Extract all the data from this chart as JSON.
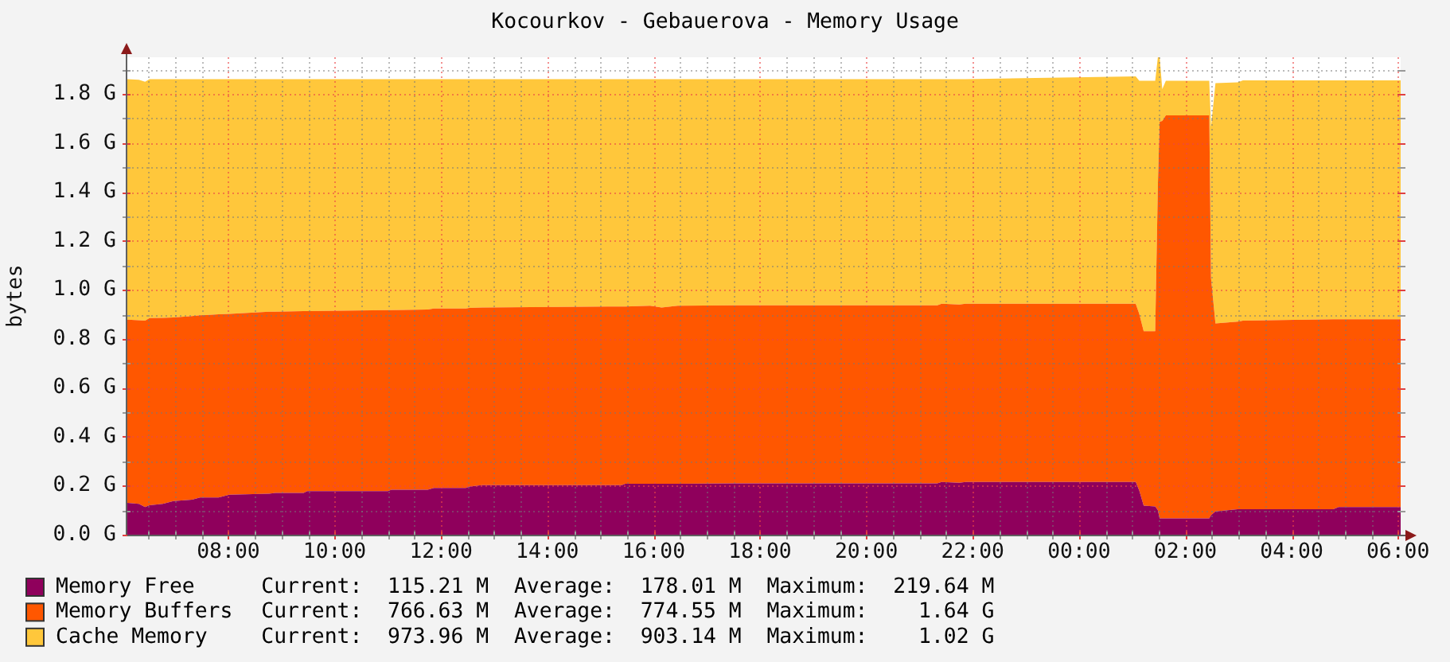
{
  "chart_data": {
    "type": "area",
    "title": "Kocourkov - Gebauerova - Memory Usage",
    "ylabel": "bytes",
    "stacked": true,
    "grid": true,
    "legend": "bottom",
    "x": [
      "--01-01T06:06",
      "--01-01T06:19",
      "--01-01T06:26",
      "--01-01T06:31",
      "--01-01T06:46",
      "--01-01T06:58",
      "--01-01T07:19",
      "--01-01T07:28",
      "--01-01T07:49",
      "--01-01T08:01",
      "--01-01T08:46",
      "--01-01T08:53",
      "--01-01T09:25",
      "--01-01T09:29",
      "--01-01T11:00",
      "--01-01T11:04",
      "--01-01T11:45",
      "--01-01T11:52",
      "--01-01T12:28",
      "--01-01T12:32",
      "--01-01T12:46",
      "--01-01T15:24",
      "--01-01T15:28",
      "--01-01T15:56",
      "--01-01T16:09",
      "--01-01T16:27",
      "--01-01T17:30",
      "--01-01T21:20",
      "--01-01T21:25",
      "--01-01T21:45",
      "--01-01T21:52",
      "--01-02T01:04",
      "--01-02T01:08",
      "--01-02T01:13",
      "--01-02T01:26",
      "--01-02T01:29",
      "--01-02T01:31",
      "--01-02T01:34",
      "--01-02T01:38",
      "--01-02T02:27",
      "--01-02T02:29",
      "--01-02T02:34",
      "--01-02T02:59",
      "--01-02T03:05",
      "--01-02T04:47",
      "--01-02T04:53",
      "--01-02T06:03"
    ],
    "series": [
      {
        "name": "Memory Free",
        "color": "#8f005c",
        "values": [
          0.13,
          0.126,
          0.113,
          0.12,
          0.126,
          0.137,
          0.143,
          0.152,
          0.152,
          0.163,
          0.167,
          0.171,
          0.171,
          0.178,
          0.178,
          0.184,
          0.184,
          0.191,
          0.191,
          0.197,
          0.202,
          0.202,
          0.208,
          0.208,
          0.208,
          0.208,
          0.21,
          0.21,
          0.215,
          0.212,
          0.215,
          0.215,
          0.18,
          0.119,
          0.115,
          0.1,
          0.067,
          0.067,
          0.067,
          0.067,
          0.08,
          0.095,
          0.104,
          0.104,
          0.104,
          0.113,
          0.113
        ]
      },
      {
        "name": "Memory Buffers",
        "color": "#ff5700",
        "values": [
          0.748,
          0.75,
          0.761,
          0.765,
          0.76,
          0.75,
          0.75,
          0.744,
          0.748,
          0.739,
          0.744,
          0.74,
          0.742,
          0.735,
          0.739,
          0.733,
          0.736,
          0.733,
          0.733,
          0.729,
          0.726,
          0.73,
          0.724,
          0.727,
          0.72,
          0.727,
          0.727,
          0.727,
          0.728,
          0.728,
          0.728,
          0.728,
          0.722,
          0.712,
          0.716,
          1.327,
          1.62,
          1.623,
          1.646,
          1.646,
          0.967,
          0.768,
          0.766,
          0.77,
          0.776,
          0.767,
          0.767
        ]
      },
      {
        "name": "Cache Memory",
        "color": "#ffc73b",
        "values": [
          0.983,
          0.982,
          0.976,
          0.976,
          0.975,
          0.974,
          0.968,
          0.965,
          0.961,
          0.959,
          0.95,
          0.95,
          0.948,
          0.948,
          0.944,
          0.944,
          0.941,
          0.937,
          0.937,
          0.935,
          0.933,
          0.929,
          0.929,
          0.926,
          0.933,
          0.926,
          0.924,
          0.924,
          0.918,
          0.921,
          0.918,
          0.929,
          0.952,
          1.023,
          1.023,
          0.523,
          0.263,
          0.13,
          0.141,
          0.141,
          0.619,
          0.981,
          0.978,
          0.982,
          0.976,
          0.976,
          0.976
        ]
      }
    ],
    "xlim": [
      "--01-01T06:06",
      "--01-02T06:03"
    ],
    "xticks": [
      {
        "value": "--01-01T06:30",
        "label": null
      },
      {
        "value": "--01-01T07:00",
        "label": null
      },
      {
        "value": "--01-01T07:30",
        "label": null
      },
      {
        "value": "--01-01T08:00",
        "label": "08:00"
      },
      {
        "value": "--01-01T08:30",
        "label": null
      },
      {
        "value": "--01-01T09:00",
        "label": null
      },
      {
        "value": "--01-01T09:30",
        "label": null
      },
      {
        "value": "--01-01T10:00",
        "label": "10:00"
      },
      {
        "value": "--01-01T10:30",
        "label": null
      },
      {
        "value": "--01-01T11:00",
        "label": null
      },
      {
        "value": "--01-01T11:30",
        "label": null
      },
      {
        "value": "--01-01T12:00",
        "label": "12:00"
      },
      {
        "value": "--01-01T12:30",
        "label": null
      },
      {
        "value": "--01-01T13:00",
        "label": null
      },
      {
        "value": "--01-01T13:30",
        "label": null
      },
      {
        "value": "--01-01T14:00",
        "label": "14:00"
      },
      {
        "value": "--01-01T14:30",
        "label": null
      },
      {
        "value": "--01-01T15:00",
        "label": null
      },
      {
        "value": "--01-01T15:30",
        "label": null
      },
      {
        "value": "--01-01T16:00",
        "label": "16:00"
      },
      {
        "value": "--01-01T16:30",
        "label": null
      },
      {
        "value": "--01-01T17:00",
        "label": null
      },
      {
        "value": "--01-01T17:30",
        "label": null
      },
      {
        "value": "--01-01T18:00",
        "label": "18:00"
      },
      {
        "value": "--01-01T18:30",
        "label": null
      },
      {
        "value": "--01-01T19:00",
        "label": null
      },
      {
        "value": "--01-01T19:30",
        "label": null
      },
      {
        "value": "--01-01T20:00",
        "label": "20:00"
      },
      {
        "value": "--01-01T20:30",
        "label": null
      },
      {
        "value": "--01-01T21:00",
        "label": null
      },
      {
        "value": "--01-01T21:30",
        "label": null
      },
      {
        "value": "--01-01T22:00",
        "label": "22:00"
      },
      {
        "value": "--01-01T22:30",
        "label": null
      },
      {
        "value": "--01-01T23:00",
        "label": null
      },
      {
        "value": "--01-01T23:30",
        "label": null
      },
      {
        "value": "--01-02T00:00",
        "label": "00:00"
      },
      {
        "value": "--01-02T00:30",
        "label": null
      },
      {
        "value": "--01-02T01:00",
        "label": null
      },
      {
        "value": "--01-02T01:30",
        "label": null
      },
      {
        "value": "--01-02T02:00",
        "label": "02:00"
      },
      {
        "value": "--01-02T02:30",
        "label": null
      },
      {
        "value": "--01-02T03:00",
        "label": null
      },
      {
        "value": "--01-02T03:30",
        "label": null
      },
      {
        "value": "--01-02T04:00",
        "label": "04:00"
      },
      {
        "value": "--01-02T04:30",
        "label": null
      },
      {
        "value": "--01-02T05:00",
        "label": null
      },
      {
        "value": "--01-02T05:30",
        "label": null
      },
      {
        "value": "--01-02T06:00",
        "label": "06:00"
      }
    ],
    "ylim": [
      0,
      1.95
    ],
    "yticks": [
      {
        "value": 0,
        "label": "0.0 G"
      },
      {
        "value": 0.1,
        "label": null
      },
      {
        "value": 0.2,
        "label": "0.2 G"
      },
      {
        "value": 0.3,
        "label": null
      },
      {
        "value": 0.4,
        "label": "0.4 G"
      },
      {
        "value": 0.5,
        "label": null
      },
      {
        "value": 0.6,
        "label": "0.6 G"
      },
      {
        "value": 0.7,
        "label": null
      },
      {
        "value": 0.8,
        "label": "0.8 G"
      },
      {
        "value": 0.9,
        "label": null
      },
      {
        "value": 1.0,
        "label": "1.0 G"
      },
      {
        "value": 1.1,
        "label": null
      },
      {
        "value": 1.2,
        "label": "1.2 G"
      },
      {
        "value": 1.3,
        "label": null
      },
      {
        "value": 1.4,
        "label": "1.4 G"
      },
      {
        "value": 1.5,
        "label": null
      },
      {
        "value": 1.6,
        "label": "1.6 G"
      },
      {
        "value": 1.7,
        "label": null
      },
      {
        "value": 1.8,
        "label": "1.8 G"
      },
      {
        "value": 1.9,
        "label": null
      }
    ],
    "annotations": [
      "Current:  115.21 M  Average:  178.01 M  Maximum:  219.64 M",
      "Current:  766.63 M  Average:  774.55 M  Maximum:    1.64 G",
      "Current:  973.96 M  Average:  903.14 M  Maximum:    1.02 G"
    ]
  }
}
